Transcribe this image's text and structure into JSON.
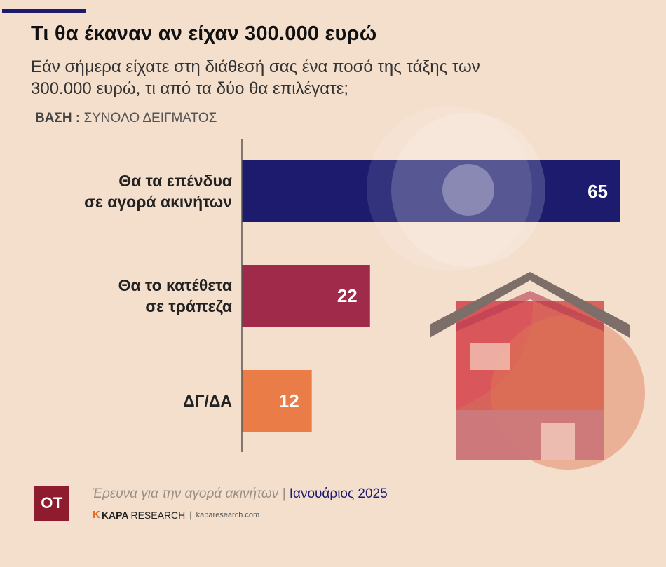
{
  "title": "Τι θα έκαναν αν είχαν 300.000 ευρώ",
  "subtitle": "Εάν σήμερα είχατε στη διάθεσή σας ένα ποσό της τάξης των 300.000 ευρώ, τι από τα δύο θα επιλέγατε;",
  "base": {
    "label": "ΒΑΣΗ :",
    "value": "ΣΥΝΟΛΟ ΔΕΙΓΜΑΤΟΣ"
  },
  "chart_data": {
    "type": "bar",
    "orientation": "horizontal",
    "categories": [
      [
        "Θα τα επένδυα",
        "σε αγορά ακινήτων"
      ],
      [
        "Θα το κατέθετα",
        "σε τράπεζα"
      ],
      [
        "ΔΓ/ΔΑ"
      ]
    ],
    "values": [
      65,
      22,
      12
    ],
    "colors": [
      "#1c1b6e",
      "#a02a4a",
      "#ea7d47"
    ],
    "data_labels": true,
    "grid": false
  },
  "footer": {
    "logo": "ΟΤ",
    "survey": "Έρευνα για την αγορά ακινήτων",
    "separator": "|",
    "date": "Ιανουάριος 2025",
    "credit_k": "K",
    "credit_brand": "KAPA",
    "credit_research": "RESEARCH",
    "credit_sep": "|",
    "credit_url": "kaparesearch.com"
  },
  "icons": [
    "house-illustration",
    "glow-circle"
  ]
}
